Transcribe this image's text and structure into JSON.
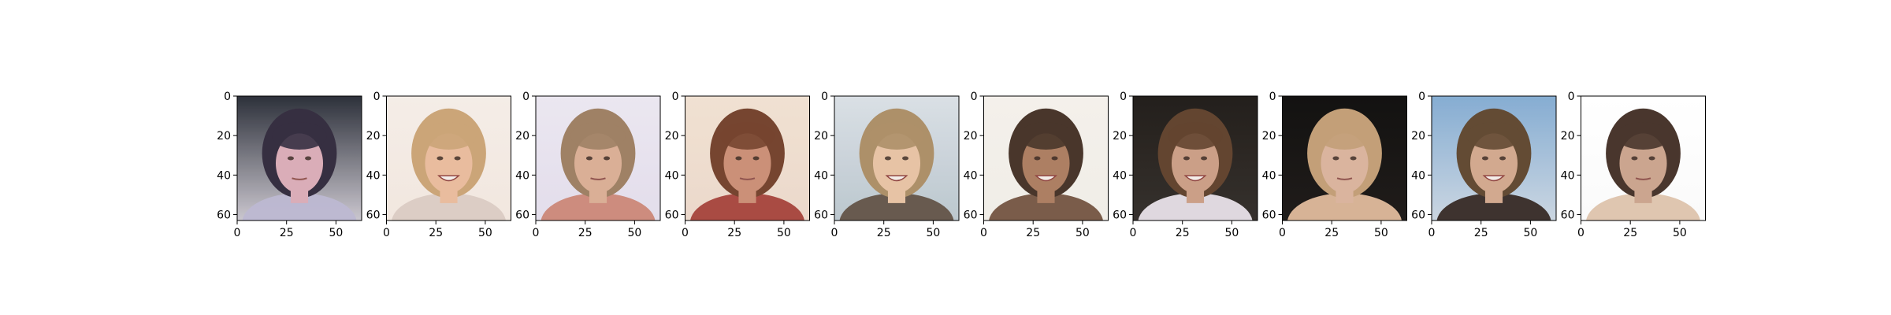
{
  "figure": {
    "background": "#ffffff",
    "panel_count": 10,
    "x_ticks": [
      "0",
      "25",
      "50"
    ],
    "y_ticks": [
      "0",
      "20",
      "40",
      "60"
    ],
    "panels": [
      {
        "bg": "#c8c4cc",
        "top": "#20242e",
        "hair": "#2a2236",
        "skin": "#d8a8b4",
        "cloth": "#b8b4d0",
        "expression": "neutral"
      },
      {
        "bg": "#f2e6de",
        "top": "#f4ece6",
        "hair": "#c8a070",
        "skin": "#e8b898",
        "cloth": "#d8c8c0",
        "expression": "smile"
      },
      {
        "bg": "#e2dcea",
        "top": "#eae6f0",
        "hair": "#9a7a5c",
        "skin": "#d8aa90",
        "cloth": "#c88070",
        "expression": "neutral"
      },
      {
        "bg": "#ead6c8",
        "top": "#f0e0d0",
        "hair": "#6e3a24",
        "skin": "#c88a70",
        "cloth": "#a03830",
        "expression": "neutral"
      },
      {
        "bg": "#b8c4cc",
        "top": "#d8dee4",
        "hair": "#a88a60",
        "skin": "#e6c0a0",
        "cloth": "#5a4a3c",
        "expression": "smile"
      },
      {
        "bg": "#f0ece6",
        "top": "#f4f0ea",
        "hair": "#3e2a1e",
        "skin": "#a8785a",
        "cloth": "#6a4a36",
        "expression": "smile"
      },
      {
        "bg": "#2a2420",
        "top": "#16120e",
        "hair": "#5a3a24",
        "skin": "#c89a80",
        "cloth": "#e8e0e8",
        "expression": "smile"
      },
      {
        "bg": "#120e0c",
        "top": "#050403",
        "hair": "#c09a70",
        "skin": "#d8b098",
        "cloth": "#e0b898",
        "expression": "neutral"
      },
      {
        "bg": "#c8d4e0",
        "top": "#7ea8d0",
        "hair": "#5a4028",
        "skin": "#d0a488",
        "cloth": "#2a1e18",
        "expression": "smile"
      },
      {
        "bg": "#fafafa",
        "top": "#ffffff",
        "hair": "#3e2a20",
        "skin": "#c8a088",
        "cloth": "#dcc0a8",
        "expression": "neutral"
      }
    ]
  }
}
